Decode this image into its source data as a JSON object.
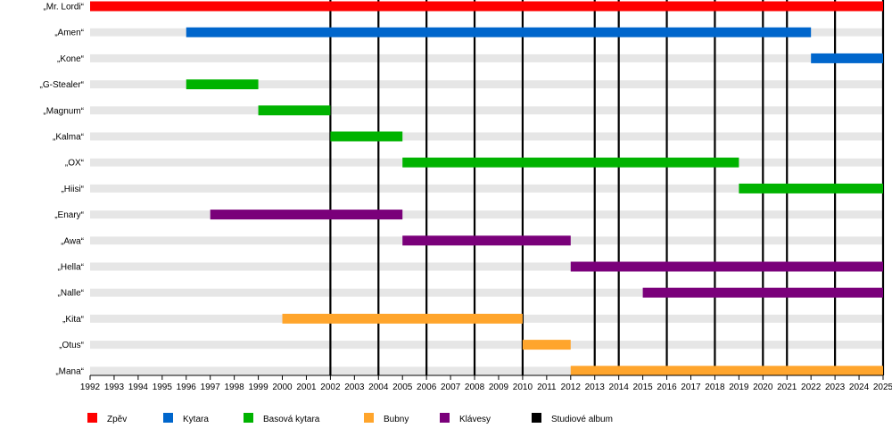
{
  "chart_data": {
    "type": "timeline",
    "xlim": [
      1992,
      2025
    ],
    "grid": "alternating-row-bands",
    "years": [
      "1992",
      "1993",
      "1994",
      "1995",
      "1996",
      "1997",
      "1998",
      "1999",
      "2000",
      "2001",
      "2002",
      "2003",
      "2004",
      "2005",
      "2006",
      "2007",
      "2008",
      "2009",
      "2010",
      "2011",
      "2012",
      "2013",
      "2014",
      "2015",
      "2016",
      "2017",
      "2018",
      "2019",
      "2020",
      "2021",
      "2022",
      "2023",
      "2024",
      "2025"
    ],
    "members": [
      "„Mr. Lordi“",
      "„Amen“",
      "„Kone“",
      "„G-Stealer“",
      "„Magnum“",
      "„Kalma“",
      "„OX“",
      "„Hiisi“",
      "„Enary“",
      "„Awa“",
      "„Hella“",
      "„Nalle“",
      "„Kita“",
      "„Otus“",
      "„Mana“"
    ],
    "roles": [
      {
        "name": "Zpěv",
        "color": "#ff0000"
      },
      {
        "name": "Kytara",
        "color": "#0066cc"
      },
      {
        "name": "Basová kytara",
        "color": "#00b300"
      },
      {
        "name": "Bubny",
        "color": "#ffa52c"
      },
      {
        "name": "Klávesy",
        "color": "#7a007a"
      },
      {
        "name": "Studiové album",
        "color": "#000000"
      }
    ],
    "bars": [
      {
        "member": 0,
        "role": 0,
        "start": 1992,
        "end": 2025
      },
      {
        "member": 1,
        "role": 1,
        "start": 1996,
        "end": 2022
      },
      {
        "member": 2,
        "role": 1,
        "start": 2022,
        "end": 2025
      },
      {
        "member": 3,
        "role": 2,
        "start": 1996,
        "end": 1999
      },
      {
        "member": 4,
        "role": 2,
        "start": 1999,
        "end": 2002
      },
      {
        "member": 5,
        "role": 2,
        "start": 2002,
        "end": 2005
      },
      {
        "member": 6,
        "role": 2,
        "start": 2005,
        "end": 2019
      },
      {
        "member": 7,
        "role": 2,
        "start": 2019,
        "end": 2025
      },
      {
        "member": 8,
        "role": 4,
        "start": 1997,
        "end": 2005
      },
      {
        "member": 9,
        "role": 4,
        "start": 2005,
        "end": 2012
      },
      {
        "member": 10,
        "role": 4,
        "start": 2012,
        "end": 2025
      },
      {
        "member": 11,
        "role": 4,
        "start": 2015,
        "end": 2025
      },
      {
        "member": 12,
        "role": 3,
        "start": 2000,
        "end": 2010
      },
      {
        "member": 13,
        "role": 3,
        "start": 2010,
        "end": 2012
      },
      {
        "member": 14,
        "role": 3,
        "start": 2012,
        "end": 2025
      }
    ],
    "albums": [
      2002,
      2004,
      2006,
      2008,
      2010,
      2013,
      2014,
      2016,
      2018,
      2020,
      2021,
      2023,
      2025
    ]
  }
}
